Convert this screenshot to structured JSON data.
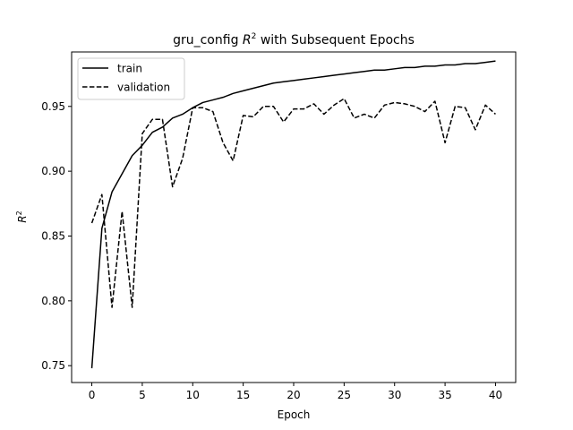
{
  "chart_data": {
    "type": "line",
    "title_prefix": "gru_config ",
    "title_symbol": "R",
    "title_sup": "2",
    "title_suffix": " with Subsequent Epochs",
    "xlabel": "Epoch",
    "ylabel_symbol": "R",
    "ylabel_sup": "2",
    "xlim": [
      -2,
      42
    ],
    "ylim": [
      0.737,
      0.992
    ],
    "xticks": [
      0,
      5,
      10,
      15,
      20,
      25,
      30,
      35,
      40
    ],
    "yticks": [
      0.75,
      0.8,
      0.85,
      0.9,
      0.95
    ],
    "ytick_labels": [
      "0.75",
      "0.80",
      "0.85",
      "0.90",
      "0.95"
    ],
    "grid": false,
    "legend_position": "top-left",
    "x": [
      0,
      1,
      2,
      3,
      4,
      5,
      6,
      7,
      8,
      9,
      10,
      11,
      12,
      13,
      14,
      15,
      16,
      17,
      18,
      19,
      20,
      21,
      22,
      23,
      24,
      25,
      26,
      27,
      28,
      29,
      30,
      31,
      32,
      33,
      34,
      35,
      36,
      37,
      38,
      39,
      40
    ],
    "series": [
      {
        "name": "train",
        "style": "solid",
        "color": "#000000",
        "values": [
          0.748,
          0.856,
          0.884,
          0.898,
          0.912,
          0.92,
          0.93,
          0.934,
          0.941,
          0.944,
          0.949,
          0.953,
          0.955,
          0.957,
          0.96,
          0.962,
          0.964,
          0.966,
          0.968,
          0.969,
          0.97,
          0.971,
          0.972,
          0.973,
          0.974,
          0.975,
          0.976,
          0.977,
          0.978,
          0.978,
          0.979,
          0.98,
          0.98,
          0.981,
          0.981,
          0.982,
          0.982,
          0.983,
          0.983,
          0.984,
          0.985
        ]
      },
      {
        "name": "validation",
        "style": "dashed",
        "color": "#000000",
        "values": [
          0.86,
          0.882,
          0.795,
          0.869,
          0.795,
          0.929,
          0.94,
          0.94,
          0.888,
          0.91,
          0.949,
          0.949,
          0.946,
          0.922,
          0.908,
          0.943,
          0.942,
          0.95,
          0.95,
          0.938,
          0.948,
          0.948,
          0.952,
          0.944,
          0.951,
          0.956,
          0.941,
          0.944,
          0.941,
          0.951,
          0.953,
          0.952,
          0.95,
          0.946,
          0.954,
          0.922,
          0.95,
          0.949,
          0.932,
          0.951,
          0.944
        ]
      }
    ]
  }
}
